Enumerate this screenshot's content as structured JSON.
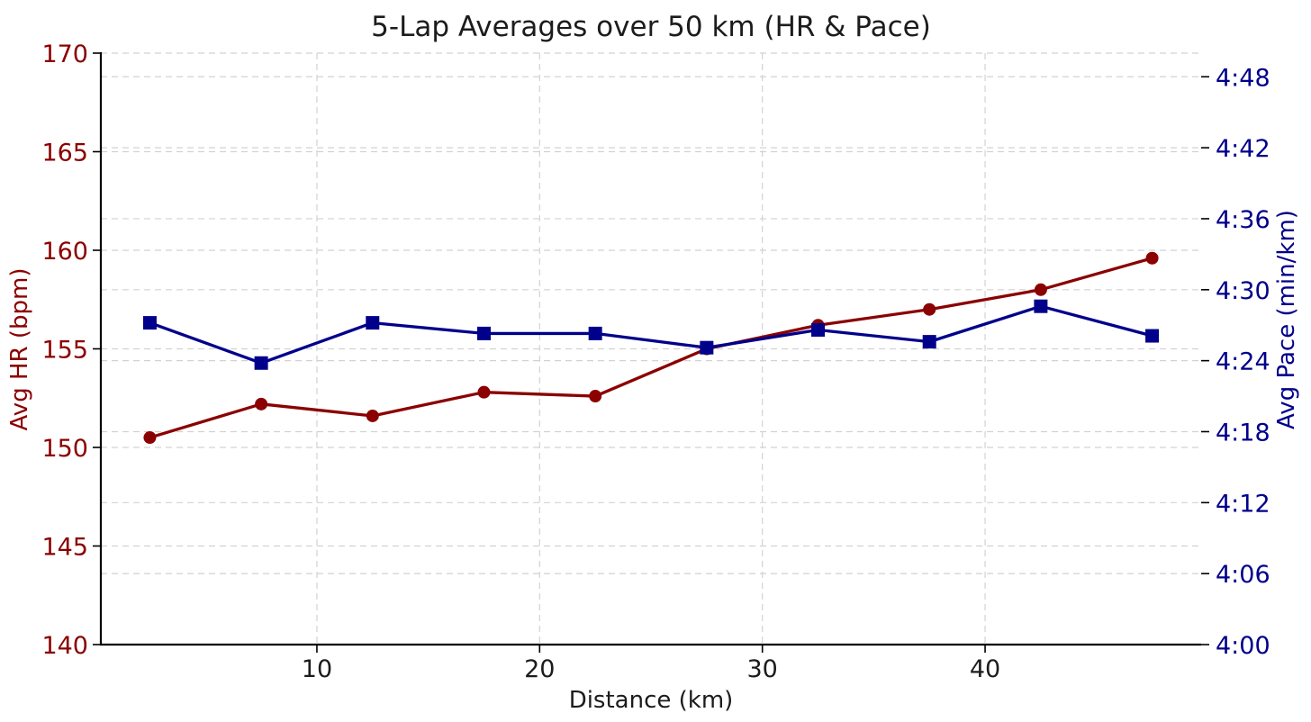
{
  "chart_data": {
    "type": "line",
    "title": "5-Lap Averages over 50 km (HR & Pace)",
    "xlabel": "Distance (km)",
    "ylabel_left": "Avg HR (bpm)",
    "ylabel_right": "Avg Pace (min/km)",
    "x": [
      2.5,
      7.5,
      12.5,
      17.5,
      22.5,
      27.5,
      32.5,
      37.5,
      42.5,
      47.5
    ],
    "series": [
      {
        "name": "Avg HR (bpm)",
        "axis": "left",
        "marker": "circle",
        "color": "#8b0000",
        "values": [
          150.5,
          152.2,
          151.6,
          152.8,
          152.6,
          155.0,
          156.2,
          157.0,
          158.0,
          159.6
        ]
      },
      {
        "name": "Avg Pace (min/km)",
        "axis": "right",
        "marker": "square",
        "color": "#00008b",
        "values_seconds": [
          267.2,
          263.8,
          267.2,
          266.3,
          266.3,
          265.1,
          266.6,
          265.6,
          268.6,
          266.1
        ],
        "values_mmss": [
          "4:27",
          "4:24",
          "4:27",
          "4:26",
          "4:26",
          "4:25",
          "4:27",
          "4:26",
          "4:29",
          "4:26"
        ]
      }
    ],
    "axes": {
      "x": {
        "min": 0.3,
        "max": 49.7,
        "ticks": [
          10,
          20,
          30,
          40
        ],
        "tick_labels": [
          "10",
          "20",
          "30",
          "40"
        ],
        "color": "#1c1c1c"
      },
      "left": {
        "min": 140,
        "max": 170,
        "ticks": [
          140,
          145,
          150,
          155,
          160,
          165,
          170
        ],
        "tick_labels": [
          "140",
          "145",
          "150",
          "155",
          "160",
          "165",
          "170"
        ],
        "color": "#8b0000"
      },
      "right": {
        "min_seconds": 240,
        "max_seconds": 290,
        "ticks_seconds": [
          240,
          246,
          252,
          258,
          264,
          270,
          276,
          282,
          288
        ],
        "tick_labels": [
          "4:00",
          "4:06",
          "4:12",
          "4:18",
          "4:24",
          "4:30",
          "4:36",
          "4:42",
          "4:48"
        ],
        "color": "#00008b"
      }
    },
    "grid": {
      "show": true,
      "style": "dashed",
      "color": "#d2d2d2"
    },
    "legend": "none",
    "background": "#ffffff",
    "spine_color": "#000000"
  }
}
